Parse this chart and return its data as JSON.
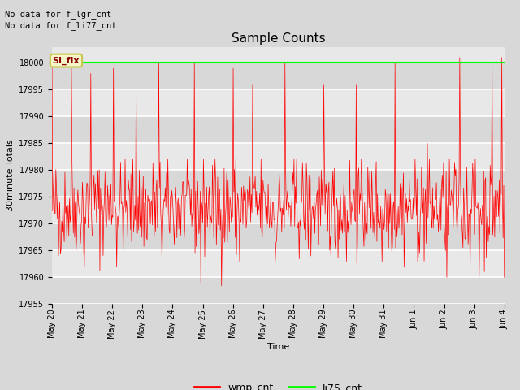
{
  "title": "Sample Counts",
  "xlabel": "Time",
  "ylabel": "30minute Totals",
  "ylim": [
    17955,
    18003
  ],
  "yticks": [
    17955,
    17960,
    17965,
    17970,
    17975,
    17980,
    17985,
    17990,
    17995,
    18000
  ],
  "xtick_labels": [
    "May 20",
    "May 21",
    "May 22",
    "May 23",
    "May 24",
    "May 25",
    "May 26",
    "May 27",
    "May 28",
    "May 29",
    "May 30",
    "May 31",
    "Jun 1",
    "Jun 2",
    "Jun 3",
    "Jun 4"
  ],
  "annotation_text1": "No data for f_lgr_cnt",
  "annotation_text2": "No data for f_li77_cnt",
  "si_flx_label": "SI_flx",
  "legend_labels": [
    "wmp_cnt",
    "li75_cnt"
  ],
  "legend_colors": [
    "red",
    "lime"
  ],
  "wmp_color": "red",
  "li75_color": "lime",
  "li75_value": 18000,
  "fig_bg_color": "#d8d8d8",
  "plot_bg_color": "#e8e8e8",
  "plot_bg_alt": "#d8d8d8",
  "grid_color": "white",
  "seed": 42,
  "n_points": 700,
  "wmp_mean": 17973,
  "wmp_std": 4.5,
  "title_fontsize": 11,
  "label_fontsize": 8,
  "tick_fontsize": 7,
  "legend_fontsize": 9
}
